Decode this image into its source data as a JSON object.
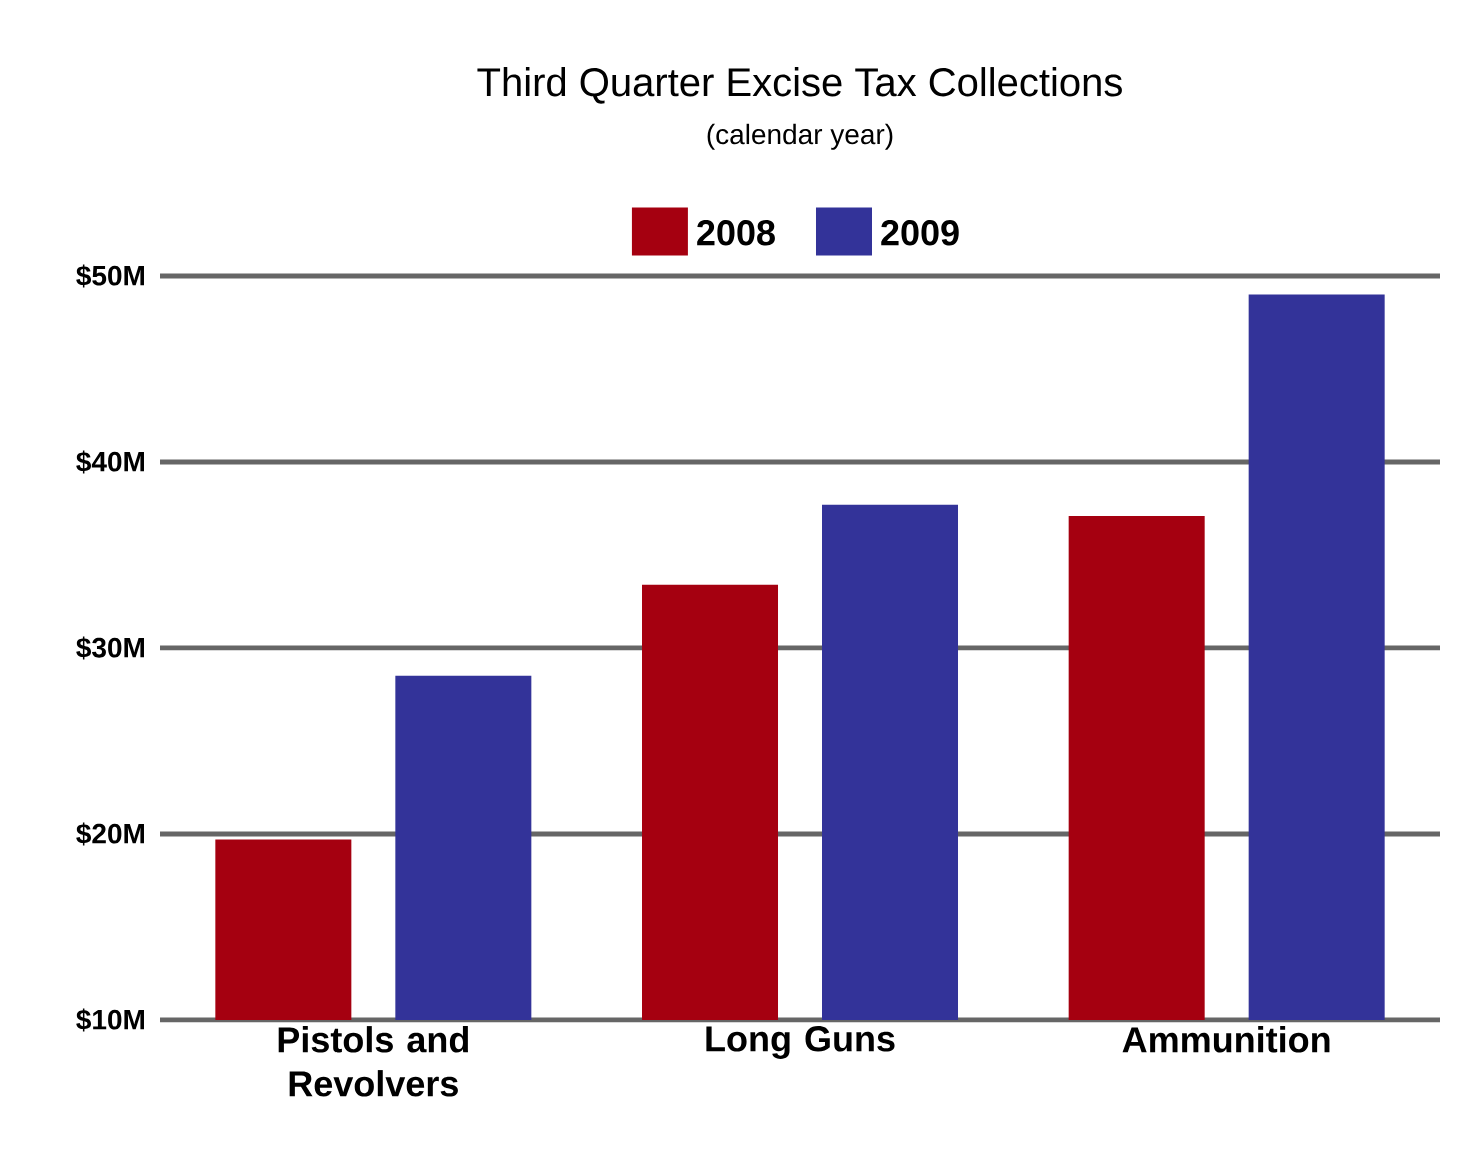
{
  "chart_data": {
    "type": "bar",
    "title": "Third Quarter Excise Tax Collections",
    "subtitle": "(calendar year)",
    "categories": [
      "Pistols and Revolvers",
      "Long Guns",
      "Ammunition"
    ],
    "series": [
      {
        "name": "2008",
        "color": "#a50010",
        "values": [
          19.7,
          33.4,
          37.1
        ]
      },
      {
        "name": "2009",
        "color": "#333399",
        "values": [
          28.5,
          37.7,
          49
        ]
      }
    ],
    "ylim": [
      10,
      50
    ],
    "yticks": [
      {
        "value": 10,
        "label": "$10M"
      },
      {
        "value": 20,
        "label": "$20M"
      },
      {
        "value": 30,
        "label": "$30M"
      },
      {
        "value": 40,
        "label": "$40M"
      },
      {
        "value": 50,
        "label": "$50M"
      }
    ],
    "grid": "y",
    "legend": "top"
  }
}
